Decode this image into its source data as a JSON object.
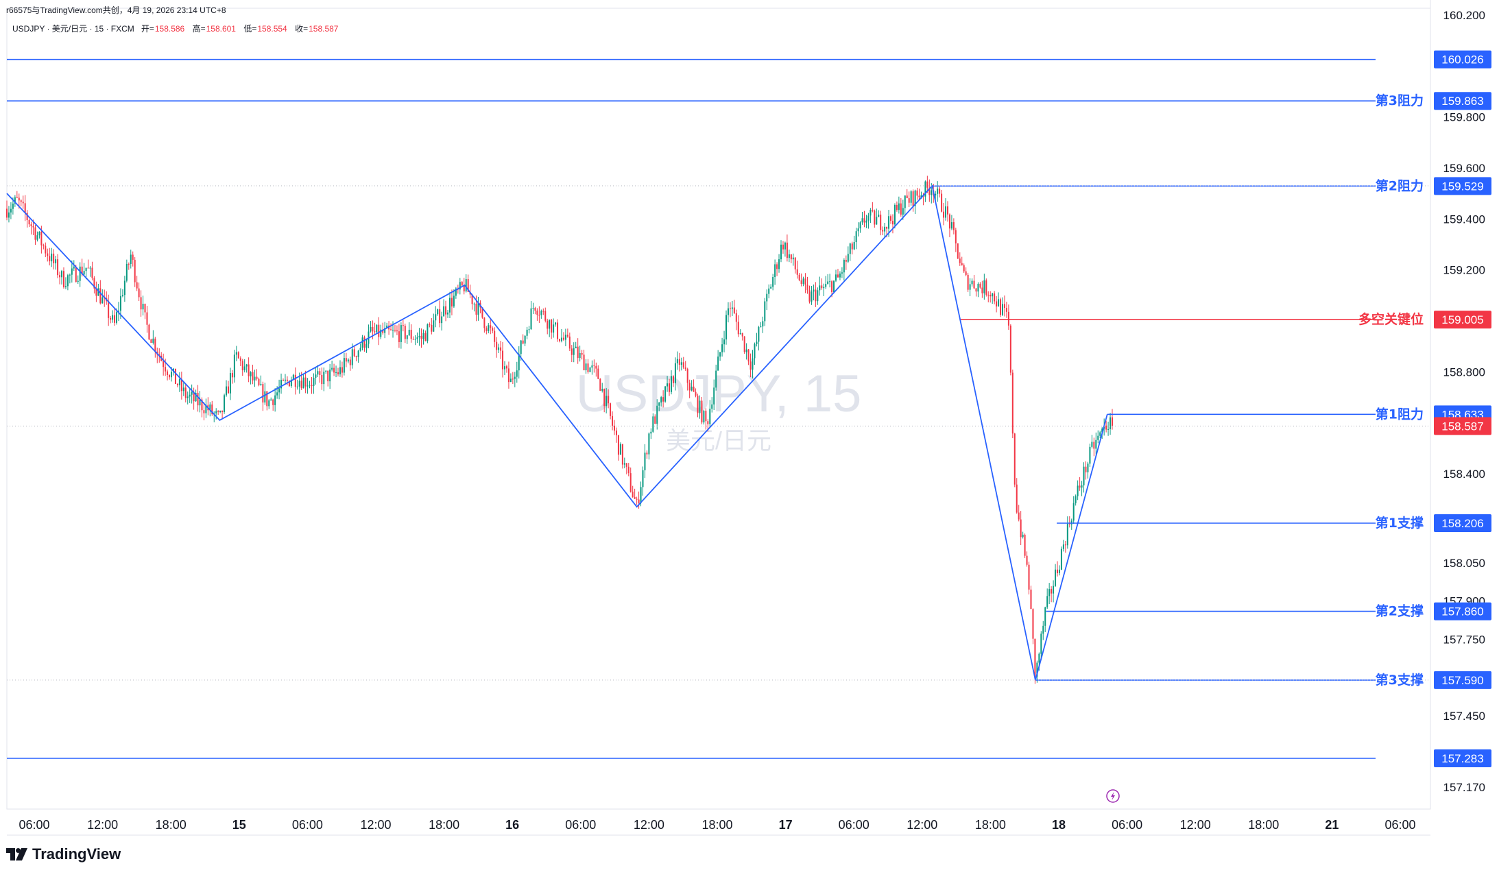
{
  "header": {
    "shared_note": "r66575与TradingView.com共创，4月 19, 2026 23:14 UTC+8",
    "symbol_line": "USDJPY · 美元/日元 · 15 · FXCM",
    "open_label": "开=",
    "open_value": "158.586",
    "high_label": "高=",
    "high_value": "158.601",
    "low_label": "低=",
    "low_value": "158.554",
    "close_label": "收=",
    "close_value": "158.587"
  },
  "watermark": {
    "symbol": "USDJPY, 15",
    "name": "美元/日元"
  },
  "brand": {
    "name": "TradingView"
  },
  "colors": {
    "up": "#089981",
    "down": "#f23645",
    "level_blue": "#2962ff",
    "key_red": "#f23645",
    "zigzag": "#2962ff",
    "axis_text": "#131722",
    "watermark": "#e0e3eb"
  },
  "chart_data": {
    "type": "candlestick",
    "instrument": "USDJPY",
    "timeframe": "15",
    "ylim": [
      157.1,
      160.3
    ],
    "x_ticks": [
      "06:00",
      "12:00",
      "18:00",
      "15",
      "06:00",
      "12:00",
      "18:00",
      "16",
      "06:00",
      "12:00",
      "18:00",
      "17",
      "06:00",
      "12:00",
      "18:00",
      "18",
      "06:00",
      "12:00",
      "18:00",
      "21",
      "06:00"
    ],
    "x_tick_bold": [
      false,
      false,
      false,
      true,
      false,
      false,
      false,
      true,
      false,
      false,
      false,
      true,
      false,
      false,
      false,
      true,
      false,
      false,
      false,
      true,
      false
    ],
    "y_ticks": [
      "160.200",
      "159.800",
      "159.600",
      "159.400",
      "159.200",
      "158.800",
      "158.400",
      "158.050",
      "157.900",
      "157.750",
      "157.450",
      "157.170"
    ],
    "y_tick_values": [
      160.2,
      159.8,
      159.6,
      159.4,
      159.2,
      158.8,
      158.4,
      158.05,
      157.9,
      157.75,
      157.45,
      157.17
    ],
    "last_price": 158.587,
    "zigzag_pivots": [
      {
        "t": 0,
        "p": 159.5
      },
      {
        "t": 0.1495,
        "p": 158.61
      },
      {
        "t": 0.3215,
        "p": 159.14
      },
      {
        "t": 0.4425,
        "p": 158.27
      },
      {
        "t": 0.65,
        "p": 159.53
      },
      {
        "t": 0.7225,
        "p": 157.59
      },
      {
        "t": 0.773,
        "p": 158.633
      }
    ],
    "levels": [
      {
        "label": "",
        "value": 160.026,
        "text": "160.026",
        "color": "#2962ff",
        "from": 0
      },
      {
        "label": "第3阻力",
        "value": 159.863,
        "text": "159.863",
        "color": "#2962ff",
        "from": 0
      },
      {
        "label": "第2阻力",
        "value": 159.529,
        "text": "159.529",
        "color": "#2962ff",
        "from": 0.65
      },
      {
        "label": "多空关键位",
        "value": 159.005,
        "text": "159.005",
        "color": "#f23645",
        "from": 0.6695
      },
      {
        "label": "第1阻力",
        "value": 158.633,
        "text": "158.633",
        "color": "#2962ff",
        "from": 0.773
      },
      {
        "label": "第1支撑",
        "value": 158.206,
        "text": "158.206",
        "color": "#2962ff",
        "from": 0.7375
      },
      {
        "label": "第2支撑",
        "value": 157.86,
        "text": "157.860",
        "color": "#2962ff",
        "from": 0.73
      },
      {
        "label": "第3支撑",
        "value": 157.59,
        "text": "157.590",
        "color": "#2962ff",
        "from": 0.7225
      },
      {
        "label": "",
        "value": 157.283,
        "text": "157.283",
        "color": "#2962ff",
        "from": 0
      }
    ],
    "price_tag": {
      "value": 158.587,
      "text": "158.587",
      "color": "#f23645"
    },
    "dotted_lines": [
      159.53,
      158.587,
      157.59
    ],
    "candle_anchors": [
      [
        0,
        159.44
      ],
      [
        0.0075,
        159.47
      ],
      [
        0.0395,
        159.16
      ],
      [
        0.056,
        159.21
      ],
      [
        0.0755,
        158.98
      ],
      [
        0.087,
        159.26
      ],
      [
        0.0975,
        158.99
      ],
      [
        0.1085,
        158.85
      ],
      [
        0.125,
        158.71
      ],
      [
        0.14,
        158.66
      ],
      [
        0.1495,
        158.61
      ],
      [
        0.161,
        158.86
      ],
      [
        0.1835,
        158.68
      ],
      [
        0.2,
        158.78
      ],
      [
        0.2135,
        158.76
      ],
      [
        0.2335,
        158.8
      ],
      [
        0.2555,
        158.95
      ],
      [
        0.28,
        158.95
      ],
      [
        0.291,
        158.93
      ],
      [
        0.3035,
        159.02
      ],
      [
        0.3215,
        159.14
      ],
      [
        0.3395,
        158.96
      ],
      [
        0.3535,
        158.75
      ],
      [
        0.3705,
        159.07
      ],
      [
        0.3885,
        158.94
      ],
      [
        0.4155,
        158.78
      ],
      [
        0.4285,
        158.53
      ],
      [
        0.4425,
        158.27
      ],
      [
        0.4515,
        158.57
      ],
      [
        0.4725,
        158.84
      ],
      [
        0.4915,
        158.59
      ],
      [
        0.5075,
        159.07
      ],
      [
        0.523,
        158.83
      ],
      [
        0.5345,
        159.1
      ],
      [
        0.545,
        159.31
      ],
      [
        0.563,
        159.09
      ],
      [
        0.5835,
        159.16
      ],
      [
        0.6035,
        159.41
      ],
      [
        0.618,
        159.38
      ],
      [
        0.6295,
        159.46
      ],
      [
        0.65,
        159.53
      ],
      [
        0.6615,
        159.4
      ],
      [
        0.673,
        159.16
      ],
      [
        0.6905,
        159.12
      ],
      [
        0.7035,
        159.0
      ],
      [
        0.7085,
        158.3
      ],
      [
        0.7175,
        158.0
      ],
      [
        0.7225,
        157.6
      ],
      [
        0.7295,
        157.86
      ],
      [
        0.739,
        158.05
      ],
      [
        0.7505,
        158.3
      ],
      [
        0.7625,
        158.5
      ],
      [
        0.773,
        158.6
      ],
      [
        0.7765,
        158.587
      ]
    ]
  }
}
